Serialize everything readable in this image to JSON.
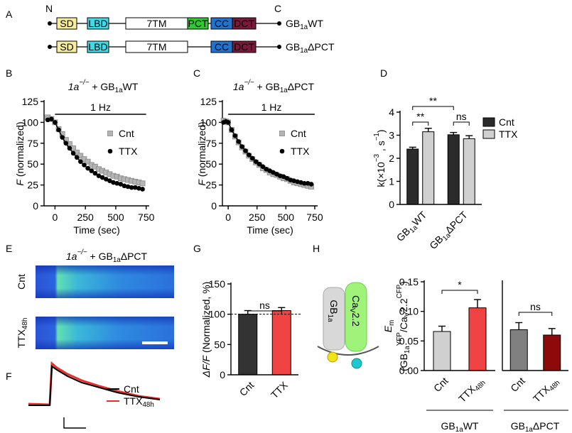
{
  "panel_labels": [
    "A",
    "B",
    "C",
    "D",
    "E",
    "F",
    "G",
    "H"
  ],
  "domain_diagram": {
    "n_terminus": "N",
    "c_terminus": "C",
    "constructs": [
      {
        "domains": [
          {
            "name": "SD",
            "color": "#f7ee9b"
          },
          {
            "name": "LBD",
            "color": "#3fdbe8"
          },
          {
            "name": "7TM",
            "color": "#ffffff"
          },
          {
            "name": "PCT",
            "color": "#2ccc2c"
          },
          {
            "name": "CC",
            "color": "#1f74d0"
          },
          {
            "name": "DCT",
            "color": "#7a1a3a"
          }
        ],
        "label": [
          {
            "text": "GB"
          },
          {
            "text": "1a",
            "style": "sub"
          },
          {
            "text": "WT"
          }
        ]
      },
      {
        "domains": [
          {
            "name": "SD",
            "color": "#f7ee9b"
          },
          {
            "name": "LBD",
            "color": "#3fdbe8"
          },
          {
            "name": "7TM",
            "color": "#ffffff"
          },
          {
            "name": "CC",
            "color": "#1f74d0"
          },
          {
            "name": "DCT",
            "color": "#7a1a3a"
          }
        ],
        "label": [
          {
            "text": "GB"
          },
          {
            "text": "1a",
            "style": "sub"
          },
          {
            "text": "ΔPCT"
          }
        ]
      }
    ]
  },
  "chart_data": [
    {
      "type": "line",
      "title": [
        {
          "text": "1a",
          "style": "i"
        },
        {
          "text": "−/−",
          "style": "isup"
        },
        {
          "text": " + GB"
        },
        {
          "text": "1a",
          "style": "sub"
        },
        {
          "text": "WT"
        }
      ],
      "annotation": "1 Hz",
      "x": [
        -60,
        -30,
        0,
        30,
        60,
        90,
        120,
        150,
        180,
        210,
        240,
        270,
        300,
        330,
        360,
        390,
        420,
        450,
        480,
        510,
        540,
        570,
        600,
        630,
        660,
        690,
        720
      ],
      "series": [
        {
          "name": "Cnt",
          "color": "#b4b4b4",
          "marker": "square",
          "values": [
            106,
            104,
            100,
            92,
            86,
            79,
            74,
            69,
            64,
            60,
            56,
            53,
            49,
            47,
            44,
            42,
            40,
            38,
            36,
            35,
            33,
            32,
            31,
            30,
            29,
            28,
            27
          ]
        },
        {
          "name": "TTX",
          "color": "#000000",
          "marker": "circle",
          "values": [
            103,
            104,
            100,
            91,
            82,
            75,
            69,
            63,
            58,
            53,
            49,
            45,
            42,
            39,
            36,
            34,
            32,
            30,
            28,
            27,
            26,
            24,
            23,
            22,
            22,
            21,
            20
          ]
        }
      ],
      "xlim": [
        -90,
        775
      ],
      "xticks": [
        0,
        250,
        500,
        750
      ],
      "ylim": [
        0,
        125
      ],
      "yticks": [
        0,
        25,
        50,
        75,
        100,
        125
      ],
      "xlabel": "Time (sec)",
      "ylabel": [
        [
          {
            "text": "F",
            "style": "i"
          },
          {
            "text": " (normalized)"
          }
        ]
      ]
    },
    {
      "type": "line",
      "title": [
        {
          "text": "1a",
          "style": "i"
        },
        {
          "text": "−/−",
          "style": "isup"
        },
        {
          "text": " + GB"
        },
        {
          "text": "1a",
          "style": "sub"
        },
        {
          "text": "ΔPCT"
        }
      ],
      "annotation": "1 Hz",
      "x": [
        -40,
        -20,
        0,
        30,
        60,
        90,
        120,
        150,
        180,
        210,
        240,
        270,
        300,
        330,
        360,
        390,
        420,
        450,
        480,
        510,
        540,
        570,
        600,
        630,
        660,
        690,
        720
      ],
      "series": [
        {
          "name": "Cnt",
          "color": "#b4b4b4",
          "marker": "square",
          "values": [
            102,
            101,
            100,
            91,
            83,
            76,
            70,
            65,
            60,
            56,
            52,
            49,
            45,
            43,
            40,
            38,
            37,
            35,
            33,
            32,
            30,
            28,
            27,
            26,
            25,
            24,
            23
          ]
        },
        {
          "name": "TTX",
          "color": "#000000",
          "marker": "circle",
          "values": [
            100,
            101,
            100,
            91,
            84,
            77,
            71,
            66,
            61,
            57,
            53,
            50,
            47,
            44,
            42,
            40,
            38,
            36,
            35,
            33,
            31,
            30,
            29,
            28,
            27,
            27,
            26
          ]
        }
      ],
      "xlim": [
        -50,
        775
      ],
      "xticks": [
        0,
        250,
        500,
        750
      ],
      "ylim": [
        0,
        125
      ],
      "yticks": [
        0,
        25,
        50,
        75,
        100,
        125
      ],
      "xlabel": "Time (sec)",
      "ylabel": [
        [
          {
            "text": "F",
            "style": "i"
          },
          {
            "text": " (normalized)"
          }
        ]
      ]
    },
    {
      "type": "bar",
      "categories": [
        [
          {
            "text": "GB"
          },
          {
            "text": "1a",
            "style": "sub"
          },
          {
            "text": "WT"
          }
        ],
        [
          {
            "text": "GB"
          },
          {
            "text": "1a",
            "style": "sub"
          },
          {
            "text": "ΔPCT"
          }
        ]
      ],
      "series": [
        {
          "name": "Cnt",
          "color": "#2b2b2b",
          "values": [
            2.4,
            3.02
          ],
          "errors": [
            0.08,
            0.1
          ]
        },
        {
          "name": "TTX",
          "color": "#d0d0d0",
          "values": [
            3.15,
            2.85
          ],
          "errors": [
            0.15,
            0.13
          ]
        }
      ],
      "ylim": [
        0,
        4
      ],
      "yticks": [
        0,
        1,
        2,
        3,
        4
      ],
      "ylabel": [
        [
          {
            "text": "k(×10"
          },
          {
            "text": "−3",
            "style": "sup"
          },
          {
            "text": " , s"
          },
          {
            "text": "−1",
            "style": "sup"
          },
          {
            "text": ")"
          }
        ]
      ],
      "annotations": [
        "**",
        "**",
        "ns"
      ]
    },
    {
      "type": "bar",
      "categories": [
        "Cnt",
        "TTX"
      ],
      "values": [
        100,
        106
      ],
      "errors": [
        6,
        5
      ],
      "colors": [
        "#333333",
        "#f04444"
      ],
      "reference_line": 100,
      "ylim": [
        0,
        150
      ],
      "yticks": [
        0,
        50,
        100,
        150
      ],
      "ylabel": [
        [
          {
            "text": "ΔF/F",
            "style": "i"
          },
          {
            "text": " (Normalized, %)"
          }
        ]
      ],
      "annotations": [
        "ns"
      ]
    },
    {
      "type": "bar",
      "categories": [
        "Cnt",
        [
          {
            "text": "TTX"
          },
          {
            "text": "48h",
            "style": "sub"
          }
        ]
      ],
      "values": [
        0.066,
        0.106
      ],
      "errors": [
        0.009,
        0.014
      ],
      "colors": [
        "#d0d0d0",
        "#f04444"
      ],
      "ylim": [
        0,
        0.15
      ],
      "yticks": [
        {
          "value": 0,
          "label": "0.00"
        },
        {
          "value": 0.05,
          "label": "0.05"
        },
        {
          "value": 0.1,
          "label": "0.10"
        },
        {
          "value": 0.15,
          "label": "0.15"
        }
      ],
      "ylabel": [
        [
          {
            "text": "E",
            "style": "i"
          },
          {
            "text": "m",
            "style": "sub"
          }
        ],
        [
          {
            "text": "(GB"
          },
          {
            "text": "1a",
            "style": "sub"
          },
          {
            "text": "YFP",
            "style": "sup"
          },
          {
            "text": "/Ca"
          },
          {
            "text": "V",
            "style": "sub"
          },
          {
            "text": "2.2"
          },
          {
            "text": "CFP",
            "style": "sup"
          },
          {
            "text": ")"
          }
        ]
      ],
      "annotations": [
        "*"
      ],
      "group_label": [
        {
          "text": "GB"
        },
        {
          "text": "1a",
          "style": "sub"
        },
        {
          "text": "WT"
        }
      ]
    },
    {
      "type": "bar",
      "categories": [
        "Cnt",
        [
          {
            "text": "TTX"
          },
          {
            "text": "48h",
            "style": "sub"
          }
        ]
      ],
      "values": [
        0.069,
        0.06
      ],
      "errors": [
        0.012,
        0.011
      ],
      "colors": [
        "#808080",
        "#8e0a0a"
      ],
      "ylim": [
        0,
        0.15
      ],
      "annotations": [
        "ns"
      ],
      "group_label": [
        {
          "text": "GB"
        },
        {
          "text": "1a",
          "style": "sub"
        },
        {
          "text": "ΔPCT"
        }
      ]
    }
  ],
  "imaging": {
    "title": [
      {
        "text": "1a",
        "style": "i"
      },
      {
        "text": "−/−",
        "style": "isup"
      },
      {
        "text": " + GB"
      },
      {
        "text": "1a",
        "style": "sub"
      },
      {
        "text": "ΔPCT"
      }
    ],
    "rows": [
      "Cnt",
      [
        {
          "text": "TTX"
        },
        {
          "text": "48h",
          "style": "sub"
        }
      ]
    ]
  },
  "trace": {
    "legend": [
      {
        "name": "Cnt",
        "color": "#000000"
      },
      {
        "name": [
          {
            "text": "TTX"
          },
          {
            "text": "48h",
            "style": "sub"
          }
        ],
        "color": "#e8312f"
      }
    ]
  },
  "schematic": {
    "labels": [
      [
        {
          "text": "GB"
        },
        {
          "text": "1a",
          "style": "sub"
        }
      ],
      [
        {
          "text": "Ca"
        },
        {
          "text": "V",
          "style": "sub"
        },
        {
          "text": "2.2"
        }
      ]
    ]
  }
}
